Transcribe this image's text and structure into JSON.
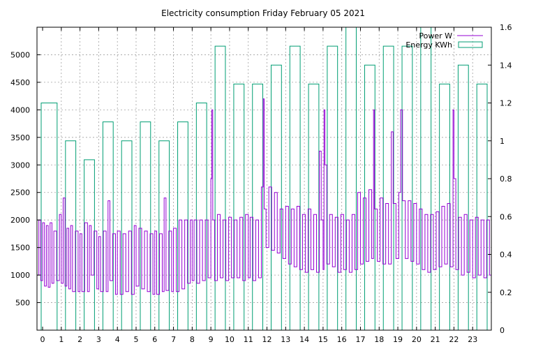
{
  "chart_data": {
    "type": "line",
    "title": "Electricity consumption Friday February 05 2021",
    "xlabel": "",
    "ylabel": "",
    "y2label": "",
    "x_ticks": [
      "0",
      "1",
      "2",
      "3",
      "4",
      "5",
      "6",
      "7",
      "8",
      "9",
      "10",
      "11",
      "12",
      "13",
      "14",
      "15",
      "16",
      "17",
      "18",
      "19",
      "20",
      "21",
      "22",
      "23"
    ],
    "xlim": [
      -0.3,
      24.0
    ],
    "y_ticks": [
      "500",
      "1000",
      "1500",
      "2000",
      "2500",
      "3000",
      "3500",
      "4000",
      "4500",
      "5000"
    ],
    "ylim": [
      0,
      5500
    ],
    "y2_ticks": [
      "0",
      "0.2",
      "0.4",
      "0.6",
      "0.8",
      "1",
      "1.2",
      "1.4",
      "1.6"
    ],
    "y2lim": [
      0,
      1.6
    ],
    "grid": true,
    "legend_position": "top-right",
    "colors": {
      "power": "#9400d3",
      "energy": "#009e73"
    },
    "series": [
      {
        "name": "Power W",
        "axis": "left",
        "style": "steps",
        "points": [
          [
            -0.3,
            1000
          ],
          [
            -0.2,
            2000
          ],
          [
            -0.1,
            900
          ],
          [
            0.0,
            1950
          ],
          [
            0.1,
            800
          ],
          [
            0.2,
            1900
          ],
          [
            0.3,
            780
          ],
          [
            0.4,
            1950
          ],
          [
            0.5,
            850
          ],
          [
            0.6,
            1800
          ],
          [
            0.75,
            900
          ],
          [
            0.9,
            2100
          ],
          [
            1.0,
            850
          ],
          [
            1.1,
            2400
          ],
          [
            1.2,
            800
          ],
          [
            1.3,
            1850
          ],
          [
            1.4,
            750
          ],
          [
            1.5,
            1900
          ],
          [
            1.6,
            700
          ],
          [
            1.75,
            1800
          ],
          [
            1.9,
            700
          ],
          [
            2.0,
            1750
          ],
          [
            2.1,
            700
          ],
          [
            2.25,
            1950
          ],
          [
            2.4,
            700
          ],
          [
            2.5,
            1900
          ],
          [
            2.6,
            1000
          ],
          [
            2.75,
            1800
          ],
          [
            2.9,
            750
          ],
          [
            3.0,
            1700
          ],
          [
            3.1,
            700
          ],
          [
            3.25,
            1800
          ],
          [
            3.4,
            700
          ],
          [
            3.5,
            2350
          ],
          [
            3.6,
            900
          ],
          [
            3.75,
            1750
          ],
          [
            3.9,
            650
          ],
          [
            4.0,
            1800
          ],
          [
            4.15,
            650
          ],
          [
            4.3,
            1750
          ],
          [
            4.45,
            700
          ],
          [
            4.6,
            1800
          ],
          [
            4.75,
            650
          ],
          [
            4.9,
            1900
          ],
          [
            5.0,
            800
          ],
          [
            5.15,
            1850
          ],
          [
            5.3,
            750
          ],
          [
            5.45,
            1800
          ],
          [
            5.6,
            700
          ],
          [
            5.75,
            1750
          ],
          [
            5.9,
            650
          ],
          [
            6.0,
            1800
          ],
          [
            6.1,
            650
          ],
          [
            6.25,
            1750
          ],
          [
            6.4,
            700
          ],
          [
            6.5,
            2400
          ],
          [
            6.6,
            720
          ],
          [
            6.75,
            1800
          ],
          [
            6.9,
            700
          ],
          [
            7.0,
            1850
          ],
          [
            7.15,
            700
          ],
          [
            7.3,
            2000
          ],
          [
            7.45,
            750
          ],
          [
            7.6,
            2000
          ],
          [
            7.75,
            850
          ],
          [
            7.9,
            2000
          ],
          [
            8.0,
            900
          ],
          [
            8.1,
            2000
          ],
          [
            8.25,
            850
          ],
          [
            8.4,
            2000
          ],
          [
            8.55,
            900
          ],
          [
            8.7,
            2000
          ],
          [
            8.85,
            950
          ],
          [
            9.0,
            2750
          ],
          [
            9.05,
            4000
          ],
          [
            9.1,
            2000
          ],
          [
            9.2,
            900
          ],
          [
            9.35,
            2100
          ],
          [
            9.5,
            950
          ],
          [
            9.65,
            2000
          ],
          [
            9.8,
            900
          ],
          [
            9.95,
            2050
          ],
          [
            10.1,
            950
          ],
          [
            10.25,
            2000
          ],
          [
            10.4,
            950
          ],
          [
            10.55,
            2050
          ],
          [
            10.7,
            900
          ],
          [
            10.85,
            2100
          ],
          [
            11.0,
            950
          ],
          [
            11.1,
            2050
          ],
          [
            11.25,
            900
          ],
          [
            11.4,
            2000
          ],
          [
            11.55,
            950
          ],
          [
            11.7,
            2600
          ],
          [
            11.8,
            4200
          ],
          [
            11.85,
            2200
          ],
          [
            11.95,
            1500
          ],
          [
            12.1,
            2600
          ],
          [
            12.25,
            1450
          ],
          [
            12.4,
            2500
          ],
          [
            12.55,
            1400
          ],
          [
            12.7,
            2200
          ],
          [
            12.85,
            1300
          ],
          [
            13.0,
            2250
          ],
          [
            13.15,
            1200
          ],
          [
            13.3,
            2200
          ],
          [
            13.45,
            1150
          ],
          [
            13.6,
            2250
          ],
          [
            13.75,
            1100
          ],
          [
            13.9,
            2100
          ],
          [
            14.05,
            1050
          ],
          [
            14.2,
            2200
          ],
          [
            14.35,
            1100
          ],
          [
            14.5,
            2100
          ],
          [
            14.65,
            1050
          ],
          [
            14.8,
            3250
          ],
          [
            14.9,
            2000
          ],
          [
            15.0,
            1100
          ],
          [
            15.05,
            4000
          ],
          [
            15.1,
            3000
          ],
          [
            15.2,
            1200
          ],
          [
            15.35,
            2100
          ],
          [
            15.5,
            1150
          ],
          [
            15.65,
            2050
          ],
          [
            15.8,
            1050
          ],
          [
            15.95,
            2100
          ],
          [
            16.1,
            1100
          ],
          [
            16.25,
            2000
          ],
          [
            16.4,
            1050
          ],
          [
            16.55,
            2100
          ],
          [
            16.7,
            1100
          ],
          [
            16.85,
            2500
          ],
          [
            17.0,
            1200
          ],
          [
            17.15,
            2400
          ],
          [
            17.3,
            1250
          ],
          [
            17.45,
            2550
          ],
          [
            17.6,
            1300
          ],
          [
            17.7,
            4000
          ],
          [
            17.75,
            2200
          ],
          [
            17.9,
            1250
          ],
          [
            18.05,
            2400
          ],
          [
            18.2,
            1200
          ],
          [
            18.35,
            2300
          ],
          [
            18.5,
            1200
          ],
          [
            18.65,
            3600
          ],
          [
            18.75,
            2300
          ],
          [
            18.9,
            1300
          ],
          [
            19.05,
            2500
          ],
          [
            19.15,
            4000
          ],
          [
            19.25,
            2350
          ],
          [
            19.4,
            1300
          ],
          [
            19.55,
            2350
          ],
          [
            19.7,
            1250
          ],
          [
            19.85,
            2300
          ],
          [
            20.0,
            1200
          ],
          [
            20.15,
            2200
          ],
          [
            20.3,
            1100
          ],
          [
            20.45,
            2100
          ],
          [
            20.6,
            1050
          ],
          [
            20.75,
            2100
          ],
          [
            20.9,
            1100
          ],
          [
            21.05,
            2150
          ],
          [
            21.2,
            1150
          ],
          [
            21.35,
            2250
          ],
          [
            21.5,
            1200
          ],
          [
            21.65,
            2300
          ],
          [
            21.8,
            1150
          ],
          [
            21.95,
            4000
          ],
          [
            22.0,
            2750
          ],
          [
            22.1,
            1100
          ],
          [
            22.25,
            2050
          ],
          [
            22.4,
            1000
          ],
          [
            22.55,
            2100
          ],
          [
            22.7,
            1050
          ],
          [
            22.85,
            2000
          ],
          [
            23.0,
            950
          ],
          [
            23.15,
            2050
          ],
          [
            23.3,
            1000
          ],
          [
            23.45,
            2000
          ],
          [
            23.6,
            950
          ],
          [
            23.75,
            2000
          ],
          [
            23.9,
            1000
          ],
          [
            24.0,
            1000
          ]
        ]
      },
      {
        "name": "Energy KWh",
        "axis": "right",
        "style": "boxes",
        "x": [
          -0.3,
          1.0,
          2.0,
          3.0,
          4.0,
          5.0,
          6.0,
          7.0,
          8.0,
          9.0,
          10.0,
          11.0,
          12.0,
          13.0,
          14.0,
          15.0,
          16.0,
          17.0,
          18.0,
          19.0,
          20.0,
          21.0,
          22.0,
          23.0
        ],
        "values": [
          1.2,
          1.0,
          0.9,
          1.1,
          1.0,
          1.1,
          1.0,
          1.1,
          1.2,
          1.5,
          1.3,
          1.3,
          1.4,
          1.5,
          1.3,
          1.5,
          1.6,
          1.4,
          1.5,
          1.5,
          1.6,
          1.3,
          1.4,
          1.3
        ]
      }
    ]
  }
}
